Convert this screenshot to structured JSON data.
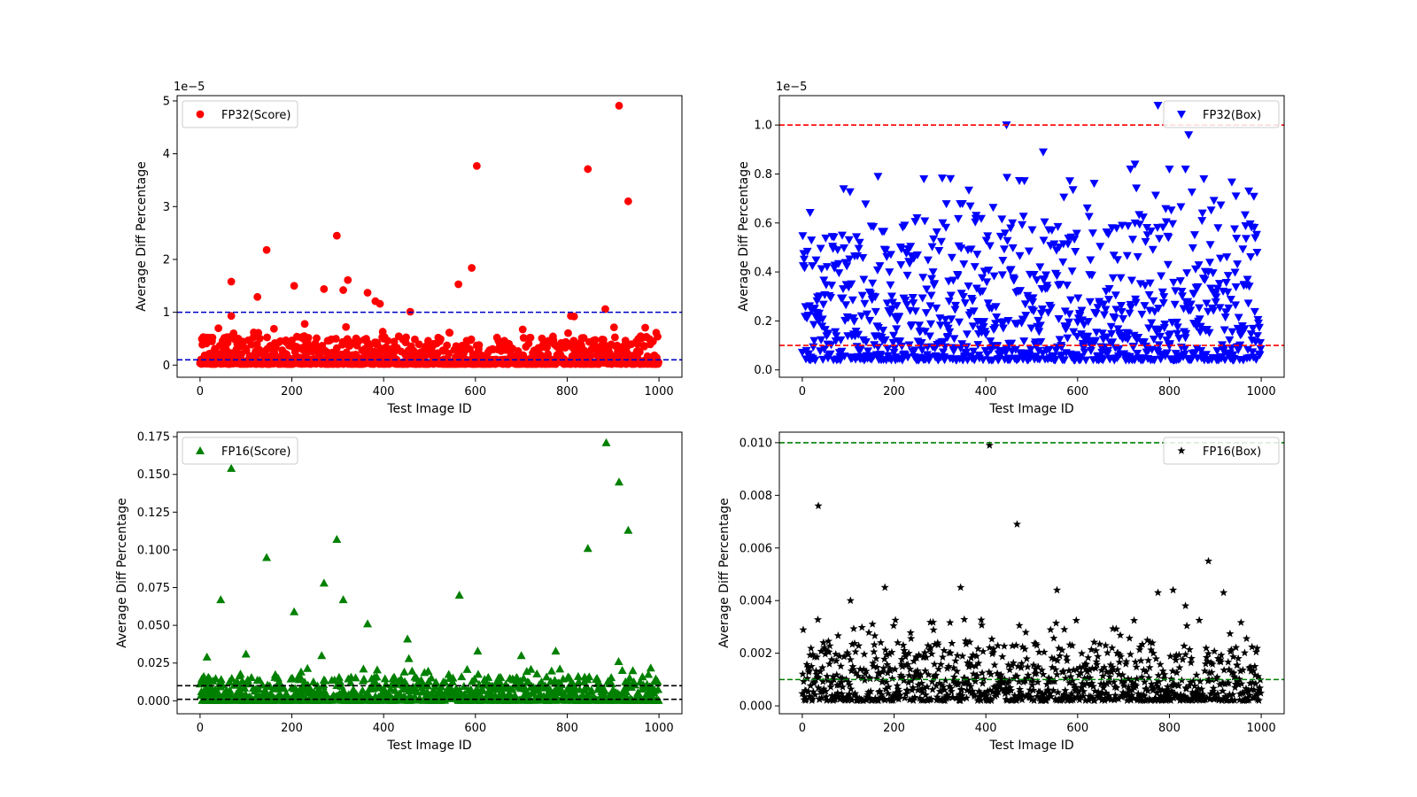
{
  "chart_data": [
    {
      "type": "scatter",
      "panel": "top-left",
      "xlabel": "Test Image ID",
      "ylabel": "Average Diff Percentage",
      "offset_text": "1e−5",
      "xlim": [
        -50,
        1050
      ],
      "ylim": [
        -0.23,
        5.1
      ],
      "xticks": [
        0,
        200,
        400,
        600,
        800,
        1000
      ],
      "xtick_labels": [
        "0",
        "200",
        "400",
        "600",
        "800",
        "1000"
      ],
      "yticks": [
        0,
        1,
        2,
        3,
        4,
        5
      ],
      "ytick_labels": [
        "0",
        "1",
        "2",
        "3",
        "4",
        "5"
      ],
      "legend": {
        "label": "FP32(Score)",
        "position": "top-left"
      },
      "marker": "circle",
      "color": "#ff0000",
      "hlines": [
        {
          "y": 1.0,
          "color": "#0000cc"
        },
        {
          "y": 0.1,
          "color": "#0000cc"
        }
      ],
      "bulk": {
        "n": 1000,
        "min": 0.02,
        "max": 0.55,
        "power": 2.6,
        "tail_max": 0.75,
        "tail_count": 14
      },
      "outliers": [
        {
          "x": 68,
          "y": 1.58
        },
        {
          "x": 68,
          "y": 0.93
        },
        {
          "x": 125,
          "y": 1.29
        },
        {
          "x": 145,
          "y": 2.18
        },
        {
          "x": 205,
          "y": 1.5
        },
        {
          "x": 228,
          "y": 0.78
        },
        {
          "x": 270,
          "y": 1.44
        },
        {
          "x": 298,
          "y": 2.45
        },
        {
          "x": 312,
          "y": 1.42
        },
        {
          "x": 322,
          "y": 1.61
        },
        {
          "x": 365,
          "y": 1.37
        },
        {
          "x": 382,
          "y": 1.21
        },
        {
          "x": 392,
          "y": 1.16
        },
        {
          "x": 458,
          "y": 1.01
        },
        {
          "x": 563,
          "y": 1.53
        },
        {
          "x": 592,
          "y": 1.84
        },
        {
          "x": 603,
          "y": 3.77
        },
        {
          "x": 808,
          "y": 0.93
        },
        {
          "x": 815,
          "y": 0.92
        },
        {
          "x": 845,
          "y": 3.71
        },
        {
          "x": 883,
          "y": 1.06
        },
        {
          "x": 913,
          "y": 4.91
        },
        {
          "x": 933,
          "y": 3.1
        }
      ]
    },
    {
      "type": "scatter",
      "panel": "top-right",
      "xlabel": "Test Image ID",
      "ylabel": "Average Diff Percentage",
      "offset_text": "1e−5",
      "xlim": [
        -50,
        1050
      ],
      "ylim": [
        -0.03,
        1.12
      ],
      "xticks": [
        0,
        200,
        400,
        600,
        800,
        1000
      ],
      "xtick_labels": [
        "0",
        "200",
        "400",
        "600",
        "800",
        "1000"
      ],
      "yticks": [
        0.0,
        0.2,
        0.4,
        0.6,
        0.8,
        1.0
      ],
      "ytick_labels": [
        "0.0",
        "0.2",
        "0.4",
        "0.6",
        "0.8",
        "1.0"
      ],
      "legend": {
        "label": "FP32(Box)",
        "position": "top-right"
      },
      "marker": "triangle-down",
      "color": "#0000ff",
      "hlines": [
        {
          "y": 1.0,
          "color": "#ff0000"
        },
        {
          "y": 0.1,
          "color": "#ff0000"
        }
      ],
      "bulk": {
        "n": 1000,
        "min": 0.04,
        "max": 0.62,
        "power": 2.3,
        "tail_max": 0.8,
        "tail_count": 40
      },
      "outliers": [
        {
          "x": 445,
          "y": 1.0
        },
        {
          "x": 525,
          "y": 0.89
        },
        {
          "x": 775,
          "y": 1.08
        },
        {
          "x": 842,
          "y": 0.96
        },
        {
          "x": 165,
          "y": 0.79
        },
        {
          "x": 265,
          "y": 0.78
        },
        {
          "x": 725,
          "y": 0.84
        },
        {
          "x": 715,
          "y": 0.82
        },
        {
          "x": 800,
          "y": 0.82
        },
        {
          "x": 835,
          "y": 0.82
        },
        {
          "x": 945,
          "y": 0.71
        },
        {
          "x": 875,
          "y": 0.78
        }
      ]
    },
    {
      "type": "scatter",
      "panel": "bottom-left",
      "xlabel": "Test Image ID",
      "ylabel": "Average Diff Percentage",
      "xlim": [
        -50,
        1050
      ],
      "ylim": [
        -0.0086,
        0.178
      ],
      "xticks": [
        0,
        200,
        400,
        600,
        800,
        1000
      ],
      "xtick_labels": [
        "0",
        "200",
        "400",
        "600",
        "800",
        "1000"
      ],
      "yticks": [
        0.0,
        0.025,
        0.05,
        0.075,
        0.1,
        0.125,
        0.15,
        0.175
      ],
      "ytick_labels": [
        "0.000",
        "0.025",
        "0.050",
        "0.075",
        "0.100",
        "0.125",
        "0.150",
        "0.175"
      ],
      "legend": {
        "label": "FP16(Score)",
        "position": "top-left"
      },
      "marker": "triangle-up",
      "color": "#008000",
      "hlines": [
        {
          "y": 0.01,
          "color": "#000000"
        },
        {
          "y": 0.001,
          "color": "#000000"
        }
      ],
      "bulk": {
        "n": 1000,
        "min": 0.0003,
        "max": 0.016,
        "power": 2.8,
        "tail_max": 0.022,
        "tail_count": 25
      },
      "outliers": [
        {
          "x": 68,
          "y": 0.154
        },
        {
          "x": 45,
          "y": 0.067
        },
        {
          "x": 145,
          "y": 0.095
        },
        {
          "x": 205,
          "y": 0.059
        },
        {
          "x": 270,
          "y": 0.078
        },
        {
          "x": 298,
          "y": 0.107
        },
        {
          "x": 312,
          "y": 0.067
        },
        {
          "x": 365,
          "y": 0.051
        },
        {
          "x": 452,
          "y": 0.041
        },
        {
          "x": 565,
          "y": 0.07
        },
        {
          "x": 845,
          "y": 0.101
        },
        {
          "x": 885,
          "y": 0.171
        },
        {
          "x": 913,
          "y": 0.145
        },
        {
          "x": 933,
          "y": 0.113
        },
        {
          "x": 15,
          "y": 0.029
        },
        {
          "x": 100,
          "y": 0.031
        },
        {
          "x": 265,
          "y": 0.03
        },
        {
          "x": 605,
          "y": 0.033
        },
        {
          "x": 700,
          "y": 0.03
        },
        {
          "x": 775,
          "y": 0.033
        },
        {
          "x": 912,
          "y": 0.026
        },
        {
          "x": 455,
          "y": 0.028
        }
      ]
    },
    {
      "type": "scatter",
      "panel": "bottom-right",
      "xlabel": "Test Image ID",
      "ylabel": "Average Diff Percentage",
      "xlim": [
        -50,
        1050
      ],
      "ylim": [
        -0.0003,
        0.0104
      ],
      "xticks": [
        0,
        200,
        400,
        600,
        800,
        1000
      ],
      "xtick_labels": [
        "0",
        "200",
        "400",
        "600",
        "800",
        "1000"
      ],
      "yticks": [
        0.0,
        0.002,
        0.004,
        0.006,
        0.008,
        0.01
      ],
      "ytick_labels": [
        "0.000",
        "0.002",
        "0.004",
        "0.006",
        "0.008",
        "0.010"
      ],
      "legend": {
        "label": "FP16(Box)",
        "position": "top-right"
      },
      "marker": "star",
      "color": "#000000",
      "hlines": [
        {
          "y": 0.01,
          "color": "#008000"
        },
        {
          "y": 0.001,
          "color": "#008000"
        }
      ],
      "bulk": {
        "n": 1000,
        "min": 0.0002,
        "max": 0.0024,
        "power": 2.2,
        "tail_max": 0.0033,
        "tail_count": 45
      },
      "outliers": [
        {
          "x": 408,
          "y": 0.0099
        },
        {
          "x": 35,
          "y": 0.0076
        },
        {
          "x": 468,
          "y": 0.0069
        },
        {
          "x": 885,
          "y": 0.0055
        },
        {
          "x": 180,
          "y": 0.0045
        },
        {
          "x": 345,
          "y": 0.0045
        },
        {
          "x": 555,
          "y": 0.0044
        },
        {
          "x": 808,
          "y": 0.0044
        },
        {
          "x": 775,
          "y": 0.0043
        },
        {
          "x": 918,
          "y": 0.0043
        },
        {
          "x": 105,
          "y": 0.004
        },
        {
          "x": 835,
          "y": 0.0038
        }
      ]
    }
  ]
}
